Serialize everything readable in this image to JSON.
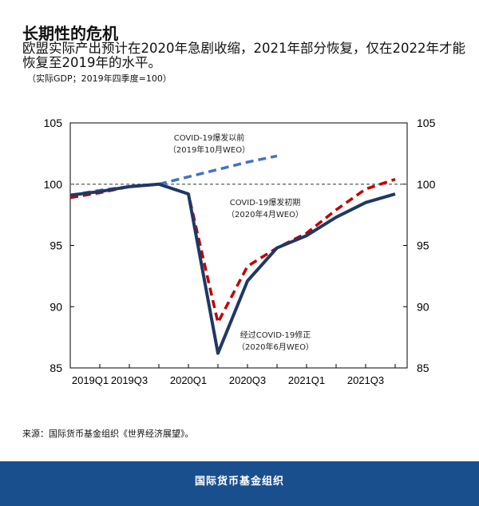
{
  "header": {
    "title": "长期性的危机",
    "subtitle": "欧盟实际产出预计在2020年急剧收缩，2021年部分恢复，仅在2022年才能恢复至2019年的水平。",
    "unit": "（实际GDP；2019年四季度=100）"
  },
  "chart_data": {
    "type": "line",
    "categories": [
      "2019Q1",
      "2019Q2",
      "2019Q3",
      "2019Q4",
      "2020Q1",
      "2020Q2",
      "2020Q3",
      "2020Q4",
      "2021Q1",
      "2021Q2",
      "2021Q3",
      "2021Q4"
    ],
    "x_tick_labels": [
      "2019Q1",
      "2019Q3",
      "2020Q1",
      "2020Q3",
      "2021Q1",
      "2021Q3"
    ],
    "ylim": [
      85,
      105
    ],
    "y_ticks": [
      85,
      90,
      95,
      100,
      105
    ],
    "reference_line": 100,
    "series": [
      {
        "name": "pre_covid",
        "label_line1": "COVID-19爆发以前",
        "label_line2": "（2019年10月WEO）",
        "color": "#4472c4",
        "style": "dashed",
        "values": [
          99.1,
          99.5,
          99.8,
          100,
          100.6,
          101.2,
          101.8,
          102.3,
          null,
          null,
          null,
          null
        ]
      },
      {
        "name": "april",
        "label_line1": "COVID-19爆发初期",
        "label_line2": "（2020年4月WEO）",
        "color": "#c00000",
        "style": "dashed",
        "values": [
          98.9,
          99.3,
          99.8,
          100,
          99.2,
          88.7,
          93.3,
          94.8,
          96.0,
          97.9,
          99.6,
          100.4
        ]
      },
      {
        "name": "june",
        "label_line1": "经过COVID-19修正",
        "label_line2": "（2020年6月WEO）",
        "color": "#1f3864",
        "style": "solid",
        "values": [
          99.1,
          99.4,
          99.8,
          100,
          99.2,
          86.2,
          92.1,
          94.8,
          95.8,
          97.3,
          98.5,
          99.2
        ]
      }
    ]
  },
  "source": "来源：国际货币基金组织《世界经济展望》。",
  "footer": "国际货币基金组织"
}
